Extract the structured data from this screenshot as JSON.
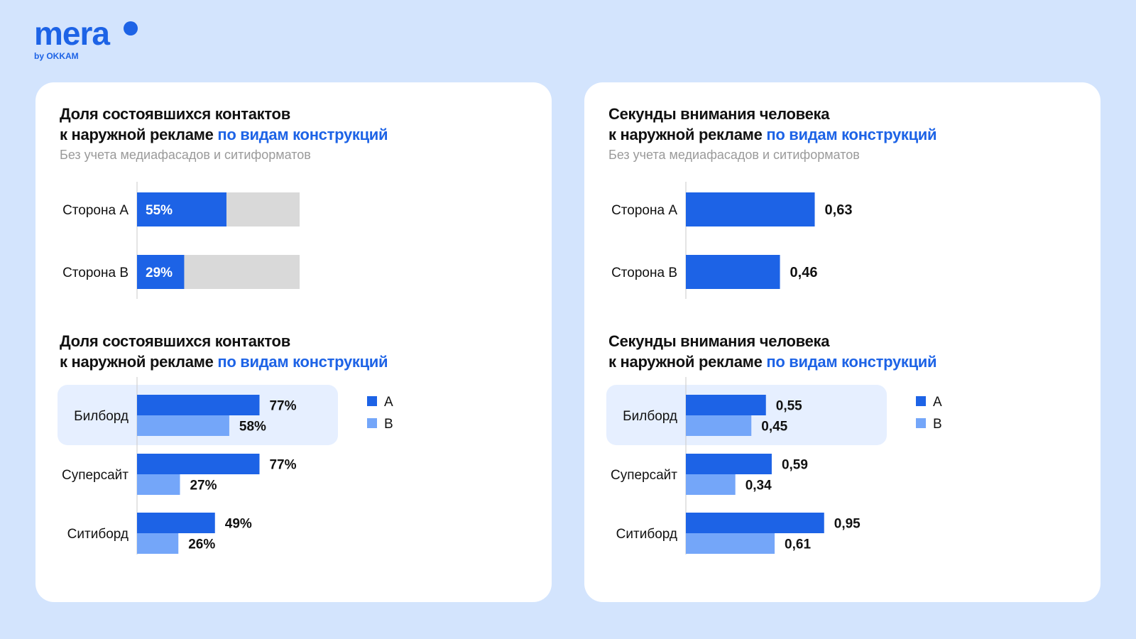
{
  "logo": {
    "word": "mera",
    "sub": "by OKKAM"
  },
  "colors": {
    "background": "#d3e4fd",
    "series_a": "#1d63e6",
    "series_b": "#74a6f9",
    "track": "#d9d9d9",
    "highlight": "#e6efff"
  },
  "left_card": {
    "top_title": {
      "line1": "Доля состоявшихся контактов",
      "line2_plain": "к наружной рекламе ",
      "line2_accent": "по видам конструкций"
    },
    "top_subtitle": "Без учета медиафасадов и ситиформатов",
    "bottom_title": {
      "line1": "Доля состоявшихся контактов",
      "line2_plain": "к наружной рекламе ",
      "line2_accent": "по видам конструкций"
    }
  },
  "right_card": {
    "top_title": {
      "line1": "Секунды внимания человека",
      "line2_plain": "к наружной рекламе ",
      "line2_accent": "по видам конструкций"
    },
    "top_subtitle": "Без учета медиафасадов и ситиформатов",
    "bottom_title": {
      "line1": "Секунды внимания человека",
      "line2_plain": "к наружной рекламе ",
      "line2_accent": "по видам конструкций"
    }
  },
  "chart_data": [
    {
      "type": "bar",
      "title": "Доля состоявшихся контактов к наружной рекламе по видам конструкций",
      "subtitle": "Без учета медиафасадов и ситиформатов",
      "orientation": "horizontal",
      "categories": [
        "Сторона А",
        "Сторона В"
      ],
      "values": [
        55,
        29
      ],
      "labels": [
        "55%",
        "29%"
      ],
      "xlim": [
        0,
        100
      ],
      "track": true
    },
    {
      "type": "bar",
      "title": "Секунды внимания человека к наружной рекламе по видам конструкций",
      "subtitle": "Без учета медиафасадов и ситиформатов",
      "orientation": "horizontal",
      "categories": [
        "Сторона А",
        "Сторона В"
      ],
      "values": [
        0.63,
        0.46
      ],
      "labels": [
        "0,63",
        "0,46"
      ],
      "xlim": [
        0,
        1
      ]
    },
    {
      "type": "bar",
      "title": "Доля состоявшихся контактов к наружной рекламе по видам конструкций",
      "orientation": "horizontal",
      "categories": [
        "Билборд",
        "Суперсайт",
        "Ситиборд"
      ],
      "highlighted_category": "Билборд",
      "legend": "right",
      "xlim": [
        0,
        100
      ],
      "series": [
        {
          "name": "A",
          "values": [
            77,
            77,
            49
          ],
          "labels": [
            "77%",
            "77%",
            "49%"
          ]
        },
        {
          "name": "B",
          "values": [
            58,
            27,
            26
          ],
          "labels": [
            "58%",
            "27%",
            "26%"
          ]
        }
      ]
    },
    {
      "type": "bar",
      "title": "Секунды внимания человека к наружной рекламе по видам конструкций",
      "orientation": "horizontal",
      "categories": [
        "Билборд",
        "Суперсайт",
        "Ситиборд"
      ],
      "highlighted_category": "Билборд",
      "legend": "right",
      "xlim": [
        0,
        1
      ],
      "series": [
        {
          "name": "A",
          "values": [
            0.55,
            0.59,
            0.95
          ],
          "labels": [
            "0,55",
            "0,59",
            "0,95"
          ]
        },
        {
          "name": "B",
          "values": [
            0.45,
            0.34,
            0.61
          ],
          "labels": [
            "0,45",
            "0,34",
            "0,61"
          ]
        }
      ]
    }
  ]
}
